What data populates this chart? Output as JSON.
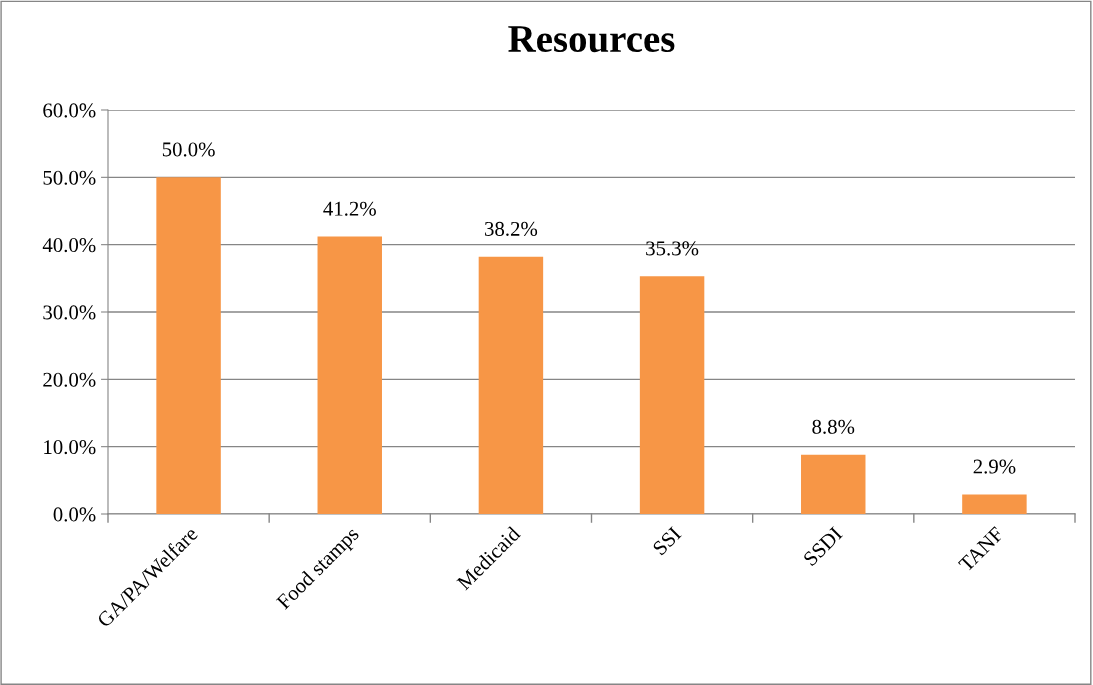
{
  "chart_data": {
    "type": "bar",
    "title": "Resources",
    "categories": [
      "GA/PA/Welfare",
      "Food stamps",
      "Medicaid",
      "SSI",
      "SSDI",
      "TANF"
    ],
    "values": [
      50.0,
      41.2,
      38.2,
      35.3,
      8.8,
      2.9
    ],
    "value_labels": [
      "50.0%",
      "41.2%",
      "38.2%",
      "35.3%",
      "8.8%",
      "2.9%"
    ],
    "color": "#f79646",
    "ylim": [
      0,
      60
    ],
    "yticks": [
      {
        "value": 0,
        "label": "0.0%"
      },
      {
        "value": 10,
        "label": "10.0%"
      },
      {
        "value": 20,
        "label": "20.0%"
      },
      {
        "value": 30,
        "label": "30.0%"
      },
      {
        "value": 40,
        "label": "40.0%"
      },
      {
        "value": 50,
        "label": "50.0%"
      },
      {
        "value": 60,
        "label": "60.0%"
      }
    ],
    "grid": "y"
  }
}
